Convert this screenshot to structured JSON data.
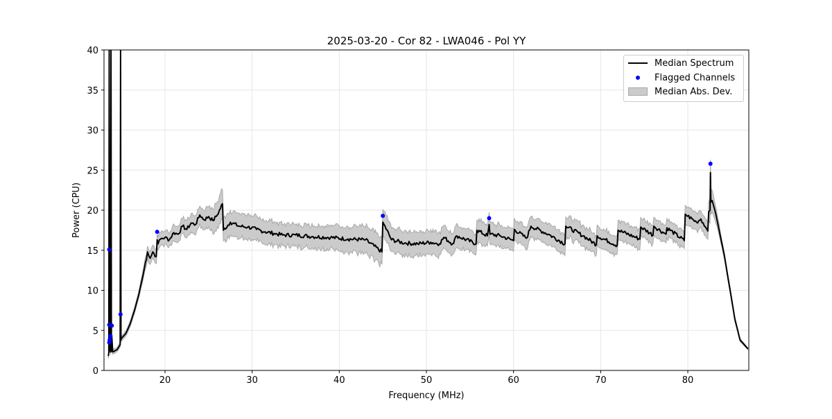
{
  "chart_data": {
    "type": "line",
    "title": "2025-03-20 - Cor 82 - LWA046 - Pol YY",
    "xlabel": "Frequency (MHz)",
    "ylabel": "Power (CPU)",
    "xlim": [
      13.0,
      87.0
    ],
    "ylim": [
      0,
      40
    ],
    "xticks": [
      20,
      30,
      40,
      50,
      60,
      70,
      80
    ],
    "yticks": [
      0,
      5,
      10,
      15,
      20,
      25,
      30,
      35,
      40
    ],
    "grid": true,
    "legend_position": "top-right",
    "legend": [
      "Median Spectrum",
      "Flagged Channels",
      "Median Abs. Dev."
    ],
    "colors": {
      "median": "#000000",
      "flagged": "#0000ff",
      "mad_fill": "#cbcbcb",
      "mad_edge": "#a8a8a8"
    },
    "series": [
      {
        "name": "Median Spectrum",
        "x": [
          13.5,
          13.55,
          13.6,
          13.65,
          13.7,
          13.75,
          13.8,
          13.85,
          13.9,
          14.0,
          14.5,
          14.85,
          14.9,
          14.95,
          15.0,
          15.5,
          16.0,
          16.5,
          17.0,
          17.5,
          18.0,
          18.3,
          18.6,
          19.0,
          19.1,
          19.2,
          19.5,
          20.0,
          20.5,
          21.0,
          21.5,
          22.0,
          22.5,
          23.0,
          23.5,
          24.0,
          24.5,
          25.0,
          25.5,
          26.0,
          26.6,
          26.7,
          27.5,
          28.5,
          29.5,
          30.5,
          31.5,
          32.5,
          33.5,
          35.0,
          37.0,
          39.0,
          41.0,
          43.0,
          44.9,
          45.0,
          46.0,
          47.5,
          49.0,
          50.5,
          51.5,
          52.0,
          53.0,
          53.5,
          55.7,
          55.8,
          57.0,
          57.2,
          57.3,
          58.5,
          60.0,
          60.1,
          61.5,
          62.0,
          64.0,
          65.9,
          66.0,
          68.0,
          69.5,
          69.6,
          71.9,
          72.0,
          74.5,
          74.6,
          76.0,
          76.1,
          77.5,
          77.6,
          79.6,
          79.7,
          81.0,
          81.5,
          82.3,
          82.4,
          82.55,
          82.6,
          82.65,
          82.8,
          83.2,
          84.2,
          85.4,
          86.0,
          86.9
        ],
        "y": [
          1.8,
          2.2,
          40,
          2.5,
          14.5,
          2.3,
          40,
          2.4,
          4.2,
          2.3,
          2.6,
          3.2,
          40,
          3.8,
          4.0,
          4.6,
          5.8,
          7.5,
          9.5,
          12.0,
          14.8,
          14.0,
          14.8,
          14.2,
          16.3,
          15.8,
          16.4,
          16.6,
          16.3,
          17.2,
          17.0,
          18.0,
          17.6,
          18.4,
          18.2,
          19.4,
          18.8,
          19.2,
          18.7,
          19.4,
          20.8,
          17.5,
          18.5,
          18.0,
          17.9,
          17.6,
          17.3,
          17.1,
          16.9,
          16.9,
          16.7,
          16.6,
          16.4,
          16.3,
          14.8,
          18.5,
          16.3,
          15.9,
          15.8,
          16.0,
          15.8,
          16.6,
          15.8,
          16.8,
          15.8,
          17.5,
          16.8,
          18.2,
          17.0,
          16.8,
          16.2,
          17.6,
          16.5,
          18.0,
          17.0,
          15.8,
          18.0,
          16.8,
          15.7,
          16.8,
          15.6,
          17.5,
          16.4,
          17.9,
          16.9,
          18.0,
          17.0,
          17.8,
          16.2,
          19.5,
          18.5,
          18.9,
          17.4,
          19.8,
          20.0,
          24.7,
          21.0,
          21.2,
          19.6,
          14.3,
          6.4,
          3.8,
          2.7
        ]
      },
      {
        "name": "Median Abs. Dev.",
        "x": [
          13.5,
          15.0,
          17.0,
          18.0,
          20.0,
          22.0,
          24.0,
          26.6,
          26.7,
          30.0,
          35.0,
          40.0,
          44.9,
          45.0,
          50.0,
          55.7,
          55.8,
          60.0,
          66.0,
          72.0,
          79.6,
          79.7,
          82.3,
          82.6,
          84.0,
          86.9
        ],
        "mad": [
          0.3,
          0.3,
          0.4,
          0.8,
          0.9,
          1.0,
          1.2,
          1.8,
          1.5,
          1.5,
          1.4,
          1.5,
          1.8,
          1.6,
          1.5,
          1.3,
          1.4,
          1.3,
          1.3,
          1.2,
          1.1,
          1.2,
          1.0,
          1.5,
          0.4,
          0.1
        ]
      }
    ],
    "flagged_channels": {
      "name": "Flagged Channels",
      "x": [
        13.6,
        13.6,
        13.6,
        13.65,
        13.75,
        13.9,
        14.9,
        19.1,
        45.0,
        57.2,
        82.6
      ],
      "y": [
        15.1,
        5.7,
        3.5,
        3.8,
        4.3,
        5.6,
        7.0,
        17.3,
        19.3,
        19.0,
        25.8
      ]
    }
  }
}
